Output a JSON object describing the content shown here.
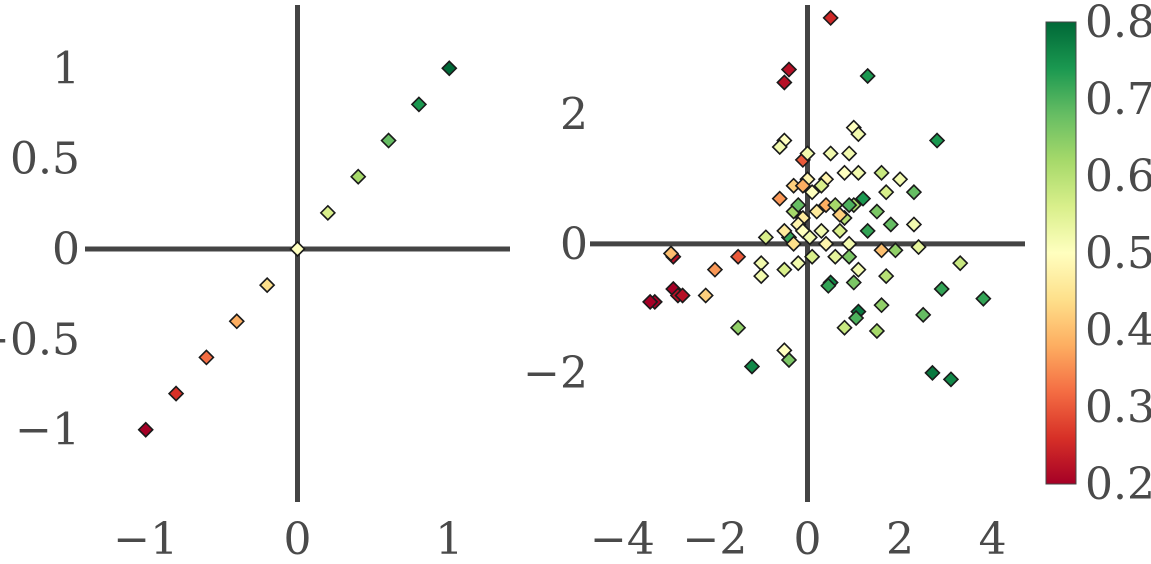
{
  "figure": {
    "colormap": "RdYlGn",
    "colorbar": {
      "min": 0.2,
      "max": 0.8,
      "ticks": [
        0.2,
        0.3,
        0.4,
        0.5,
        0.6,
        0.7,
        0.8
      ],
      "tick_labels": [
        "0.2",
        "0.3",
        "0.4",
        "0.5",
        "0.6",
        "0.7",
        "0.8"
      ]
    },
    "marker": "diamond",
    "axis_line_color": "#444444",
    "edge_color": "#1a1a1a"
  },
  "chart_data": [
    {
      "type": "scatter",
      "title": "",
      "xlabel": "",
      "ylabel": "",
      "xlim": [
        -1.4,
        1.4
      ],
      "ylim": [
        -1.4,
        1.35
      ],
      "grid": false,
      "xticks": [
        -1,
        0,
        1
      ],
      "xtick_labels": [
        "−1",
        "0",
        "1"
      ],
      "yticks": [
        -1,
        -0.5,
        0,
        0.5,
        1
      ],
      "ytick_labels": [
        "−1",
        "−0.5",
        "0",
        "0.5",
        "1"
      ],
      "points": [
        {
          "x": -1.0,
          "y": -1.0,
          "c": 0.2
        },
        {
          "x": -0.8,
          "y": -0.8,
          "c": 0.26
        },
        {
          "x": -0.6,
          "y": -0.6,
          "c": 0.32
        },
        {
          "x": -0.4,
          "y": -0.4,
          "c": 0.38
        },
        {
          "x": -0.2,
          "y": -0.2,
          "c": 0.44
        },
        {
          "x": 0.0,
          "y": 0.0,
          "c": 0.5
        },
        {
          "x": 0.2,
          "y": 0.2,
          "c": 0.56
        },
        {
          "x": 0.4,
          "y": 0.4,
          "c": 0.62
        },
        {
          "x": 0.6,
          "y": 0.6,
          "c": 0.68
        },
        {
          "x": 0.8,
          "y": 0.8,
          "c": 0.74
        },
        {
          "x": 1.0,
          "y": 1.0,
          "c": 0.8
        }
      ]
    },
    {
      "type": "scatter",
      "title": "",
      "xlabel": "",
      "ylabel": "",
      "xlim": [
        -4.7,
        4.7
      ],
      "ylim": [
        -4.0,
        3.7
      ],
      "grid": false,
      "xticks": [
        -4,
        -2,
        0,
        2,
        4
      ],
      "xtick_labels": [
        "−4",
        "−2",
        "0",
        "2",
        "4"
      ],
      "yticks": [
        -2,
        0,
        2
      ],
      "ytick_labels": [
        "−2",
        "0",
        "2"
      ],
      "points": [
        {
          "x": 0.5,
          "y": 3.5,
          "c": 0.25
        },
        {
          "x": -0.4,
          "y": 2.7,
          "c": 0.22
        },
        {
          "x": -0.5,
          "y": 2.5,
          "c": 0.22
        },
        {
          "x": 1.3,
          "y": 2.6,
          "c": 0.74
        },
        {
          "x": -3.3,
          "y": -0.9,
          "c": 0.2
        },
        {
          "x": -3.4,
          "y": -0.9,
          "c": 0.2
        },
        {
          "x": -2.9,
          "y": -0.7,
          "c": 0.2
        },
        {
          "x": -2.8,
          "y": -0.8,
          "c": 0.22
        },
        {
          "x": -2.7,
          "y": -0.8,
          "c": 0.22
        },
        {
          "x": -2.9,
          "y": -0.2,
          "c": 0.22
        },
        {
          "x": -2.95,
          "y": -0.15,
          "c": 0.4
        },
        {
          "x": -2.0,
          "y": -0.4,
          "c": 0.36
        },
        {
          "x": -1.5,
          "y": -0.2,
          "c": 0.3
        },
        {
          "x": -2.2,
          "y": -0.8,
          "c": 0.42
        },
        {
          "x": -1.5,
          "y": -1.3,
          "c": 0.64
        },
        {
          "x": -1.2,
          "y": -1.9,
          "c": 0.76
        },
        {
          "x": -1.0,
          "y": -0.3,
          "c": 0.52
        },
        {
          "x": -1.0,
          "y": -0.5,
          "c": 0.52
        },
        {
          "x": -0.9,
          "y": 0.1,
          "c": 0.56
        },
        {
          "x": -0.5,
          "y": -1.65,
          "c": 0.5
        },
        {
          "x": -0.4,
          "y": -1.8,
          "c": 0.66
        },
        {
          "x": -0.5,
          "y": 1.6,
          "c": 0.5
        },
        {
          "x": -0.6,
          "y": 1.5,
          "c": 0.52
        },
        {
          "x": -0.3,
          "y": 0.5,
          "c": 0.62
        },
        {
          "x": -0.2,
          "y": 0.6,
          "c": 0.68
        },
        {
          "x": -0.4,
          "y": 0.1,
          "c": 0.72
        },
        {
          "x": -0.5,
          "y": -0.4,
          "c": 0.56
        },
        {
          "x": -0.2,
          "y": -0.3,
          "c": 0.52
        },
        {
          "x": -0.6,
          "y": 0.7,
          "c": 0.36
        },
        {
          "x": -0.3,
          "y": 0.9,
          "c": 0.42
        },
        {
          "x": -0.1,
          "y": 0.4,
          "c": 0.46
        },
        {
          "x": -0.3,
          "y": 0.0,
          "c": 0.44
        },
        {
          "x": -0.5,
          "y": 0.2,
          "c": 0.46
        },
        {
          "x": -0.2,
          "y": 0.3,
          "c": 0.48
        },
        {
          "x": -0.1,
          "y": 1.3,
          "c": 0.3
        },
        {
          "x": 0.0,
          "y": 1.4,
          "c": 0.52
        },
        {
          "x": 0.0,
          "y": 1.0,
          "c": 0.48
        },
        {
          "x": 0.1,
          "y": 0.8,
          "c": 0.5
        },
        {
          "x": 0.2,
          "y": 0.5,
          "c": 0.46
        },
        {
          "x": 0.3,
          "y": 0.2,
          "c": 0.52
        },
        {
          "x": 0.4,
          "y": 0.0,
          "c": 0.48
        },
        {
          "x": 0.1,
          "y": -0.2,
          "c": 0.56
        },
        {
          "x": 0.5,
          "y": 1.4,
          "c": 0.52
        },
        {
          "x": 0.4,
          "y": 1.0,
          "c": 0.48
        },
        {
          "x": 0.4,
          "y": 0.6,
          "c": 0.38
        },
        {
          "x": 0.6,
          "y": 0.6,
          "c": 0.62
        },
        {
          "x": 0.7,
          "y": 0.2,
          "c": 0.56
        },
        {
          "x": 0.8,
          "y": 1.1,
          "c": 0.5
        },
        {
          "x": 0.9,
          "y": 1.4,
          "c": 0.52
        },
        {
          "x": 0.8,
          "y": 0.4,
          "c": 0.6
        },
        {
          "x": 0.9,
          "y": 0.0,
          "c": 0.52
        },
        {
          "x": 0.9,
          "y": -0.2,
          "c": 0.66
        },
        {
          "x": 1.0,
          "y": 0.6,
          "c": 0.62
        },
        {
          "x": 1.1,
          "y": 1.1,
          "c": 0.52
        },
        {
          "x": 1.0,
          "y": 1.8,
          "c": 0.5
        },
        {
          "x": 1.1,
          "y": 1.7,
          "c": 0.52
        },
        {
          "x": 1.2,
          "y": 0.7,
          "c": 0.74
        },
        {
          "x": 1.3,
          "y": 0.2,
          "c": 0.72
        },
        {
          "x": 1.1,
          "y": -0.4,
          "c": 0.52
        },
        {
          "x": 1.5,
          "y": 0.5,
          "c": 0.66
        },
        {
          "x": 1.6,
          "y": 1.1,
          "c": 0.58
        },
        {
          "x": 1.7,
          "y": 0.8,
          "c": 0.56
        },
        {
          "x": 1.8,
          "y": 0.3,
          "c": 0.68
        },
        {
          "x": 1.7,
          "y": -0.5,
          "c": 0.6
        },
        {
          "x": 1.6,
          "y": -0.1,
          "c": 0.4
        },
        {
          "x": 1.9,
          "y": -0.1,
          "c": 0.64
        },
        {
          "x": 2.0,
          "y": 1.0,
          "c": 0.52
        },
        {
          "x": 2.3,
          "y": 0.8,
          "c": 0.68
        },
        {
          "x": 2.3,
          "y": 0.3,
          "c": 0.52
        },
        {
          "x": 2.4,
          "y": -0.05,
          "c": 0.54
        },
        {
          "x": 2.8,
          "y": 1.6,
          "c": 0.74
        },
        {
          "x": 2.9,
          "y": -0.7,
          "c": 0.72
        },
        {
          "x": 2.5,
          "y": -1.1,
          "c": 0.68
        },
        {
          "x": 2.7,
          "y": -2.0,
          "c": 0.78
        },
        {
          "x": 3.1,
          "y": -2.1,
          "c": 0.76
        },
        {
          "x": 3.3,
          "y": -0.3,
          "c": 0.58
        },
        {
          "x": 3.8,
          "y": -0.85,
          "c": 0.72
        },
        {
          "x": 0.5,
          "y": -0.6,
          "c": 0.76
        },
        {
          "x": 0.45,
          "y": -0.65,
          "c": 0.72
        },
        {
          "x": 0.8,
          "y": -1.3,
          "c": 0.58
        },
        {
          "x": 1.1,
          "y": -1.05,
          "c": 0.78
        },
        {
          "x": 1.05,
          "y": -1.15,
          "c": 0.7
        },
        {
          "x": 1.6,
          "y": -0.95,
          "c": 0.64
        },
        {
          "x": 1.5,
          "y": -1.35,
          "c": 0.62
        },
        {
          "x": 1.0,
          "y": -0.6,
          "c": 0.66
        },
        {
          "x": 0.6,
          "y": -0.2,
          "c": 0.54
        },
        {
          "x": 0.7,
          "y": 0.45,
          "c": 0.42
        },
        {
          "x": 0.9,
          "y": 0.6,
          "c": 0.7
        },
        {
          "x": 0.3,
          "y": 0.9,
          "c": 0.56
        },
        {
          "x": -0.1,
          "y": 0.9,
          "c": 0.38
        },
        {
          "x": -0.1,
          "y": 0.2,
          "c": 0.5
        },
        {
          "x": 0.05,
          "y": 0.1,
          "c": 0.52
        }
      ]
    }
  ]
}
